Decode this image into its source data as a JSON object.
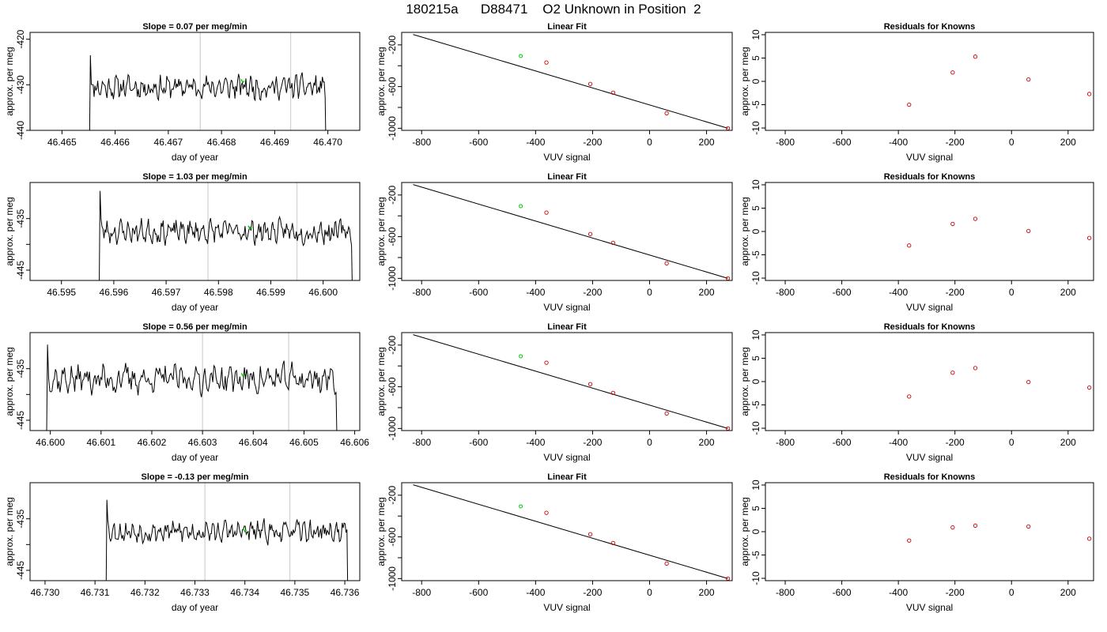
{
  "figure": {
    "title": "180215a      D88471    O2 Unknown in Position  2"
  },
  "chart_data": [
    {
      "panel": "time-series",
      "type": "line",
      "title": "Slope =  0.07  per meg/min",
      "xlabel": "day of year",
      "ylabel": "approx. per meg",
      "xlim": [
        46.4644,
        46.4706
      ],
      "ylim": [
        -440,
        -418.5
      ],
      "xticks": [
        46.465,
        46.466,
        46.467,
        46.468,
        46.469,
        46.47
      ],
      "xtick_labels": [
        "46.465",
        "46.466",
        "46.467",
        "46.468",
        "46.469",
        "46.470"
      ],
      "yticks": [
        -440,
        -430,
        -420
      ],
      "ytick_labels": [
        "-440",
        "-430",
        "-420"
      ],
      "start_x": 46.4655,
      "end_x": 46.47,
      "baseline": -430.5,
      "noise": 2.5,
      "seed": 11,
      "vlines": [
        46.4676,
        46.4693
      ],
      "marker_x": 46.4684,
      "marker_y": -429.5,
      "colors": {
        "line": "#000000",
        "vline": "#d3d3d3",
        "marker": "#00cc00"
      }
    },
    {
      "panel": "linear-fit",
      "type": "scatter",
      "title": "Linear Fit",
      "xlabel": "VUV signal",
      "ylabel": "approx. per meg",
      "xlim": [
        -870,
        290
      ],
      "ylim": [
        -1020,
        -80
      ],
      "xticks": [
        -800,
        -600,
        -400,
        -200,
        0,
        200
      ],
      "yticks": [
        -1000,
        -800,
        -600,
        -400,
        -200
      ],
      "ytick_labels": [
        "-1000",
        "",
        "-600",
        "",
        "-200"
      ],
      "fit_line": {
        "x": [
          -830,
          275
        ],
        "y": [
          -100,
          -1000
        ]
      },
      "knowns": {
        "x": [
          -362,
          -208,
          -128,
          60,
          275
        ],
        "y": [
          -369,
          -575,
          -659,
          -856,
          -1000
        ]
      },
      "unknown": {
        "x": [
          -452
        ],
        "y": [
          -307
        ]
      },
      "colors": {
        "fit": "#000000",
        "knowns": "#cc0000",
        "unknown": "#00cc00"
      }
    },
    {
      "panel": "residuals",
      "type": "scatter",
      "title": "Residuals for Knowns",
      "xlabel": "VUV signal",
      "ylabel": "approx. per meg",
      "xlim": [
        -870,
        290
      ],
      "ylim": [
        -10.5,
        10.5
      ],
      "xticks": [
        -800,
        -600,
        -400,
        -200,
        0,
        200
      ],
      "yticks": [
        -10,
        -5,
        0,
        5,
        10
      ],
      "ytick_labels": [
        "-10",
        "-5",
        "0",
        "5",
        "10"
      ],
      "x": [
        -362,
        -208,
        -128,
        60,
        275
      ],
      "y": [
        -5.0,
        1.9,
        5.3,
        0.4,
        -2.7
      ],
      "colors": {
        "points": "#cc0000"
      }
    },
    {
      "panel": "time-series",
      "type": "line",
      "title": "Slope =  1.03  per meg/min",
      "xlabel": "day of year",
      "ylabel": "approx. per meg",
      "xlim": [
        46.5944,
        46.6007
      ],
      "ylim": [
        -447,
        -428
      ],
      "xticks": [
        46.595,
        46.596,
        46.597,
        46.598,
        46.599,
        46.6
      ],
      "xtick_labels": [
        "46.595",
        "46.596",
        "46.597",
        "46.598",
        "46.599",
        "46.600"
      ],
      "yticks": [
        -445,
        -440,
        -435
      ],
      "ytick_labels": [
        "-445",
        "",
        "-435"
      ],
      "start_x": 46.5957,
      "end_x": 46.6006,
      "baseline": -437.5,
      "noise": 2.2,
      "seed": 23,
      "vlines": [
        46.5978,
        46.5995
      ],
      "marker_x": 46.5986,
      "marker_y": -437.0,
      "colors": {
        "line": "#000000",
        "vline": "#d3d3d3",
        "marker": "#00cc00"
      }
    },
    {
      "panel": "linear-fit",
      "type": "scatter",
      "title": "Linear Fit",
      "xlabel": "VUV signal",
      "ylabel": "approx. per meg",
      "xlim": [
        -870,
        290
      ],
      "ylim": [
        -1020,
        -80
      ],
      "xticks": [
        -800,
        -600,
        -400,
        -200,
        0,
        200
      ],
      "yticks": [
        -1000,
        -800,
        -600,
        -400,
        -200
      ],
      "ytick_labels": [
        "-1000",
        "",
        "-600",
        "",
        "-200"
      ],
      "fit_line": {
        "x": [
          -830,
          275
        ],
        "y": [
          -100,
          -1000
        ]
      },
      "knowns": {
        "x": [
          -362,
          -208,
          -128,
          60,
          275
        ],
        "y": [
          -369,
          -575,
          -659,
          -856,
          -1000
        ]
      },
      "unknown": {
        "x": [
          -452
        ],
        "y": [
          -307
        ]
      },
      "colors": {
        "fit": "#000000",
        "knowns": "#cc0000",
        "unknown": "#00cc00"
      }
    },
    {
      "panel": "residuals",
      "type": "scatter",
      "title": "Residuals for Knowns",
      "xlabel": "VUV signal",
      "ylabel": "approx. per meg",
      "xlim": [
        -870,
        290
      ],
      "ylim": [
        -10.5,
        10.5
      ],
      "xticks": [
        -800,
        -600,
        -400,
        -200,
        0,
        200
      ],
      "yticks": [
        -10,
        -5,
        0,
        5,
        10
      ],
      "ytick_labels": [
        "-10",
        "-5",
        "0",
        "5",
        "10"
      ],
      "x": [
        -362,
        -208,
        -128,
        60,
        275
      ],
      "y": [
        -3.0,
        1.6,
        2.7,
        0.1,
        -1.4
      ],
      "colors": {
        "points": "#cc0000"
      }
    },
    {
      "panel": "time-series",
      "type": "line",
      "title": "Slope =  0.56  per meg/min",
      "xlabel": "day of year",
      "ylabel": "approx. per meg",
      "xlim": [
        46.5996,
        46.6061
      ],
      "ylim": [
        -447,
        -428
      ],
      "xticks": [
        46.6,
        46.601,
        46.602,
        46.603,
        46.604,
        46.605,
        46.606
      ],
      "xtick_labels": [
        "46.600",
        "46.601",
        "46.602",
        "46.603",
        "46.604",
        "46.605",
        "46.606"
      ],
      "yticks": [
        -445,
        -440,
        -435
      ],
      "ytick_labels": [
        "-445",
        "",
        "-435"
      ],
      "start_x": 46.5999,
      "end_x": 46.6057,
      "baseline": -437.0,
      "noise": 2.8,
      "seed": 37,
      "vlines": [
        46.603,
        46.6047
      ],
      "marker_x": 46.6038,
      "marker_y": -436.5,
      "colors": {
        "line": "#000000",
        "vline": "#d3d3d3",
        "marker": "#00cc00"
      }
    },
    {
      "panel": "linear-fit",
      "type": "scatter",
      "title": "Linear Fit",
      "xlabel": "VUV signal",
      "ylabel": "approx. per meg",
      "xlim": [
        -870,
        290
      ],
      "ylim": [
        -1020,
        -80
      ],
      "xticks": [
        -800,
        -600,
        -400,
        -200,
        0,
        200
      ],
      "yticks": [
        -1000,
        -800,
        -600,
        -400,
        -200
      ],
      "ytick_labels": [
        "-1000",
        "",
        "-600",
        "",
        "-200"
      ],
      "fit_line": {
        "x": [
          -830,
          275
        ],
        "y": [
          -100,
          -1000
        ]
      },
      "knowns": {
        "x": [
          -362,
          -208,
          -128,
          60,
          275
        ],
        "y": [
          -369,
          -575,
          -659,
          -856,
          -1000
        ]
      },
      "unknown": {
        "x": [
          -452
        ],
        "y": [
          -307
        ]
      },
      "colors": {
        "fit": "#000000",
        "knowns": "#cc0000",
        "unknown": "#00cc00"
      }
    },
    {
      "panel": "residuals",
      "type": "scatter",
      "title": "Residuals for Knowns",
      "xlabel": "VUV signal",
      "ylabel": "approx. per meg",
      "xlim": [
        -870,
        290
      ],
      "ylim": [
        -10.5,
        10.5
      ],
      "xticks": [
        -800,
        -600,
        -400,
        -200,
        0,
        200
      ],
      "yticks": [
        -10,
        -5,
        0,
        5,
        10
      ],
      "ytick_labels": [
        "-10",
        "-5",
        "0",
        "5",
        "10"
      ],
      "x": [
        -362,
        -208,
        -128,
        60,
        275
      ],
      "y": [
        -3.2,
        1.9,
        2.9,
        -0.1,
        -1.3
      ],
      "colors": {
        "points": "#cc0000"
      }
    },
    {
      "panel": "time-series",
      "type": "line",
      "title": "Slope =  -0.13  per meg/min",
      "xlabel": "day of year",
      "ylabel": "approx. per meg",
      "xlim": [
        46.7297,
        46.7363
      ],
      "ylim": [
        -447,
        -428
      ],
      "xticks": [
        46.73,
        46.731,
        46.732,
        46.733,
        46.734,
        46.735,
        46.736
      ],
      "xtick_labels": [
        "46.730",
        "46.731",
        "46.732",
        "46.733",
        "46.734",
        "46.735",
        "46.736"
      ],
      "yticks": [
        -445,
        -440,
        -435
      ],
      "ytick_labels": [
        "-445",
        "",
        "-435"
      ],
      "start_x": 46.7312,
      "end_x": 46.7361,
      "baseline": -437.5,
      "noise": 2.0,
      "seed": 53,
      "vlines": [
        46.7332,
        46.7349
      ],
      "marker_x": 46.734,
      "marker_y": -437.5,
      "colors": {
        "line": "#000000",
        "vline": "#d3d3d3",
        "marker": "#00cc00"
      }
    },
    {
      "panel": "linear-fit",
      "type": "scatter",
      "title": "Linear Fit",
      "xlabel": "VUV signal",
      "ylabel": "approx. per meg",
      "xlim": [
        -870,
        290
      ],
      "ylim": [
        -1020,
        -80
      ],
      "xticks": [
        -800,
        -600,
        -400,
        -200,
        0,
        200
      ],
      "yticks": [
        -1000,
        -800,
        -600,
        -400,
        -200
      ],
      "ytick_labels": [
        "-1000",
        "",
        "-600",
        "",
        "-200"
      ],
      "fit_line": {
        "x": [
          -830,
          275
        ],
        "y": [
          -100,
          -1000
        ]
      },
      "knowns": {
        "x": [
          -362,
          -208,
          -128,
          60,
          275
        ],
        "y": [
          -369,
          -575,
          -659,
          -856,
          -1000
        ]
      },
      "unknown": {
        "x": [
          -452
        ],
        "y": [
          -307
        ]
      },
      "colors": {
        "fit": "#000000",
        "knowns": "#cc0000",
        "unknown": "#00cc00"
      }
    },
    {
      "panel": "residuals",
      "type": "scatter",
      "title": "Residuals for Knowns",
      "xlabel": "VUV signal",
      "ylabel": "approx. per meg",
      "xlim": [
        -870,
        290
      ],
      "ylim": [
        -10.5,
        10.5
      ],
      "xticks": [
        -800,
        -600,
        -400,
        -200,
        0,
        200
      ],
      "yticks": [
        -10,
        -5,
        0,
        5,
        10
      ],
      "ytick_labels": [
        "-10",
        "-5",
        "0",
        "5",
        "10"
      ],
      "x": [
        -362,
        -208,
        -128,
        60,
        275
      ],
      "y": [
        -1.9,
        0.9,
        1.3,
        1.1,
        -1.5
      ],
      "colors": {
        "points": "#cc0000"
      }
    }
  ]
}
